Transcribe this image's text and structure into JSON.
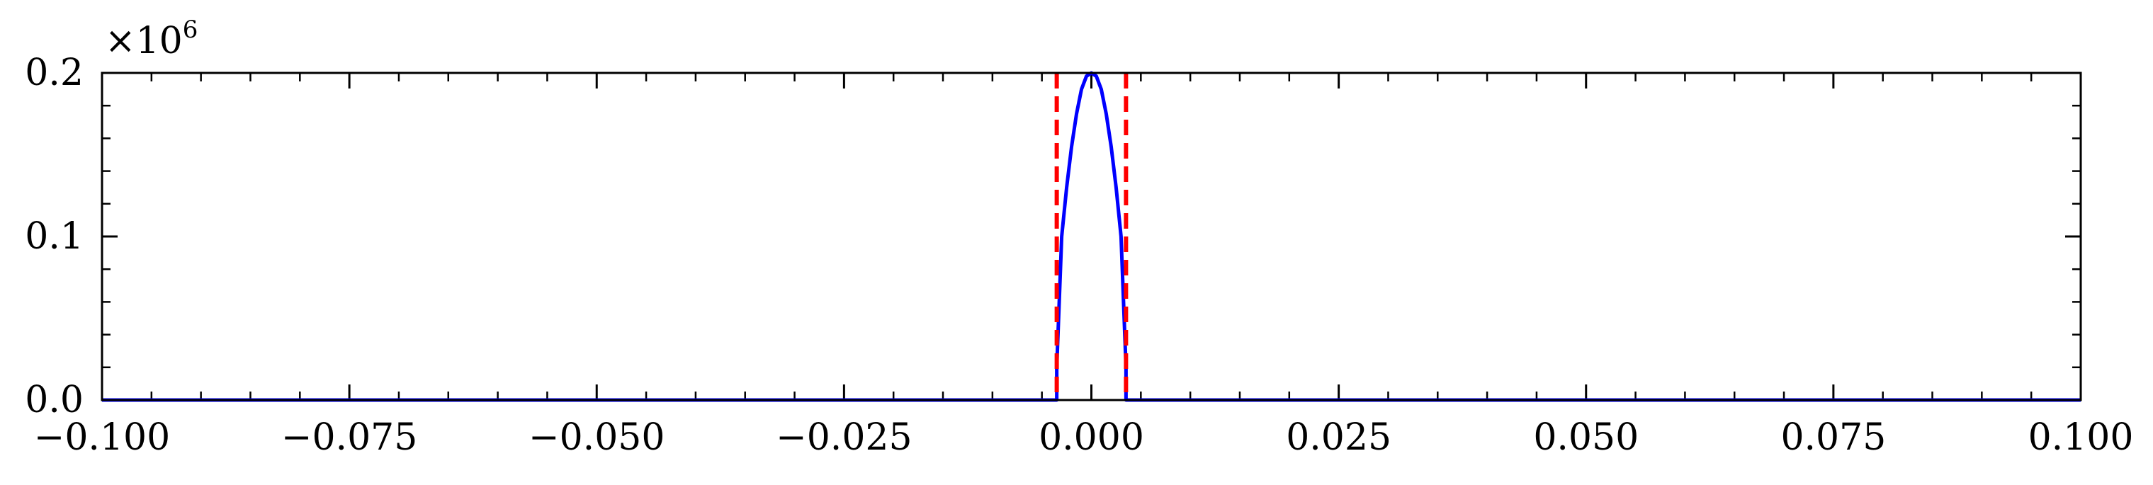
{
  "chart_data": {
    "type": "line",
    "title": "",
    "xlabel": "",
    "ylabel": "",
    "xlim": [
      -0.1,
      0.1
    ],
    "ylim": [
      0,
      0.2
    ],
    "y_scale_label": "×10",
    "y_scale_exponent": "6",
    "x_ticks": [
      -0.1,
      -0.075,
      -0.05,
      -0.025,
      0.0,
      0.025,
      0.05,
      0.075,
      0.1
    ],
    "x_tick_labels": [
      "−0.100",
      "−0.075",
      "−0.050",
      "−0.025",
      "0.000",
      "0.025",
      "0.050",
      "0.075",
      "0.100"
    ],
    "y_ticks": [
      0.0,
      0.1,
      0.2
    ],
    "y_tick_labels": [
      "0.0",
      "0.1",
      "0.2"
    ],
    "grid": false,
    "series": [
      {
        "color": "#0000ff",
        "style": "solid",
        "x": [
          -0.1,
          -0.0035,
          -0.0035,
          -0.003,
          -0.0025,
          -0.002,
          -0.0015,
          -0.001,
          -0.0005,
          0.0,
          0.0005,
          0.001,
          0.0015,
          0.002,
          0.0025,
          0.003,
          0.0035,
          0.0035,
          0.1
        ],
        "y": [
          0.0,
          0.0,
          0.02,
          0.1,
          0.13,
          0.155,
          0.175,
          0.19,
          0.198,
          0.2,
          0.198,
          0.19,
          0.175,
          0.155,
          0.13,
          0.1,
          0.02,
          0.0,
          0.0
        ]
      }
    ],
    "vlines": [
      {
        "x": -0.0035,
        "color": "#ff0000",
        "style": "dashed"
      },
      {
        "x": 0.0035,
        "color": "#ff0000",
        "style": "dashed"
      }
    ]
  }
}
